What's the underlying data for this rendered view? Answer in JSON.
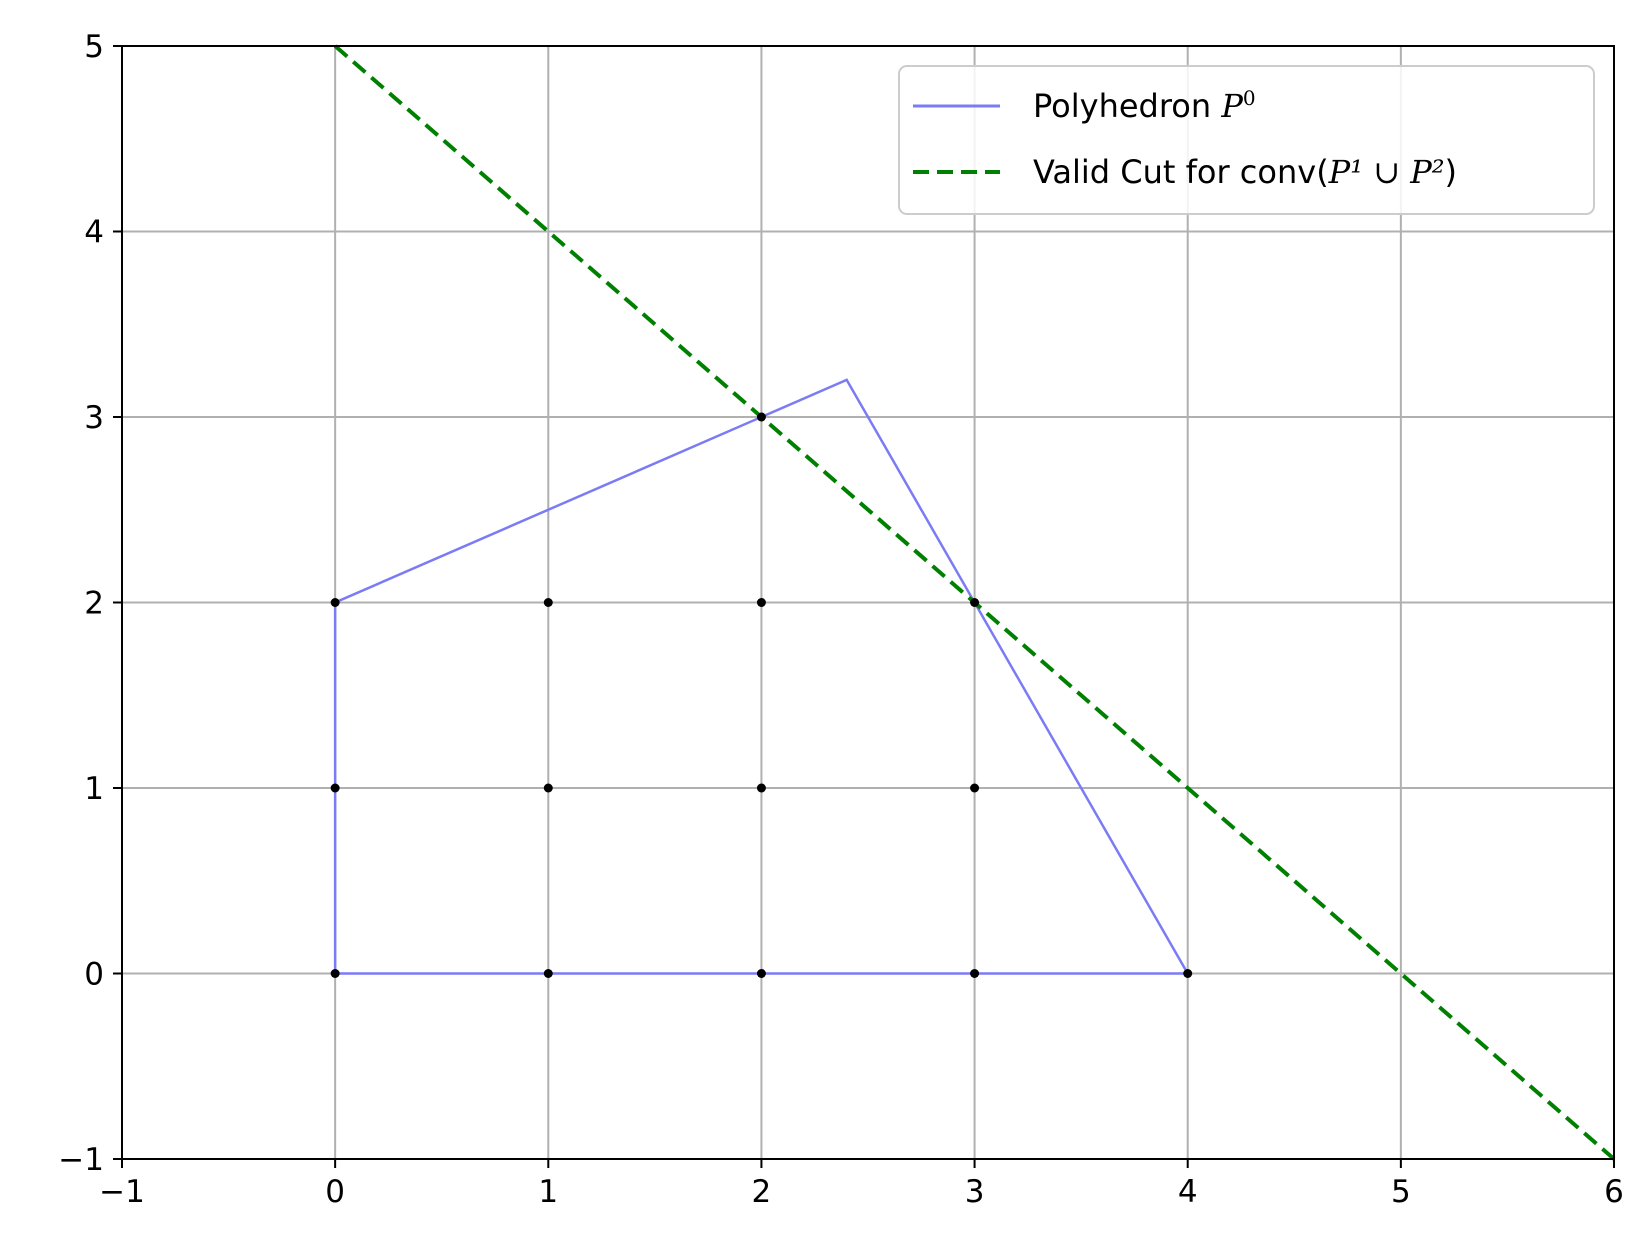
{
  "chart_data": {
    "type": "line",
    "title": "",
    "xlabel": "",
    "ylabel": "",
    "xlim": [
      -1,
      6
    ],
    "ylim": [
      -1,
      5
    ],
    "xticks": [
      "−1",
      "0",
      "1",
      "2",
      "3",
      "4",
      "5",
      "6"
    ],
    "yticks": [
      "−1",
      "0",
      "1",
      "2",
      "3",
      "4",
      "5"
    ],
    "xtick_values": [
      -1,
      0,
      1,
      2,
      3,
      4,
      5,
      6
    ],
    "ytick_values": [
      -1,
      0,
      1,
      2,
      3,
      4,
      5
    ],
    "grid": true,
    "legend_position": "top-right",
    "series": [
      {
        "name": "Polyhedron",
        "name_math": "P",
        "name_sup": "0",
        "style": "solid",
        "color": "#7b7bf5",
        "points": [
          [
            0,
            0
          ],
          [
            0,
            2
          ],
          [
            2.4,
            3.2
          ],
          [
            4,
            0
          ],
          [
            0,
            0
          ]
        ]
      },
      {
        "name": "Valid Cut for conv(",
        "name_math": "P¹ ∪ P²",
        "name_suffix": ")",
        "style": "dashed",
        "color": "#008000",
        "points": [
          [
            0,
            5
          ],
          [
            6,
            -1
          ]
        ]
      }
    ],
    "integer_points": [
      [
        0,
        0
      ],
      [
        1,
        0
      ],
      [
        2,
        0
      ],
      [
        3,
        0
      ],
      [
        4,
        0
      ],
      [
        0,
        1
      ],
      [
        1,
        1
      ],
      [
        2,
        1
      ],
      [
        3,
        1
      ],
      [
        0,
        2
      ],
      [
        1,
        2
      ],
      [
        2,
        2
      ],
      [
        2,
        3
      ],
      [
        3,
        2
      ]
    ],
    "point_color": "#000000"
  }
}
